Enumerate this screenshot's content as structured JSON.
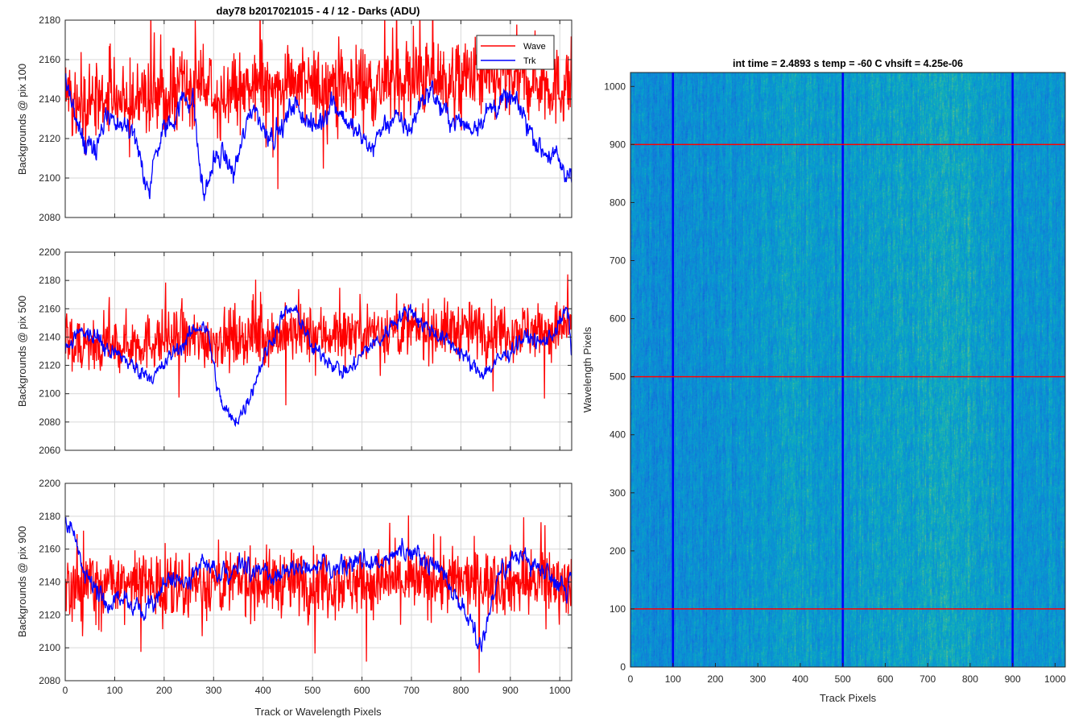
{
  "figure": {
    "title": "day78 b2017021015 - 4 / 12 - Darks (ADU)",
    "shared_xlabel": "Track or Wavelength Pixels",
    "colors": {
      "wave": "#ff0000",
      "trk": "#0000ff",
      "grid": "#d9d9d9",
      "axis": "#262626"
    }
  },
  "chart_data": [
    {
      "type": "line",
      "ylabel": "Backgrounds @ pix 100",
      "xlim": [
        0,
        1024
      ],
      "ylim": [
        2080,
        2180
      ],
      "xticks": [
        0,
        100,
        200,
        300,
        400,
        500,
        600,
        700,
        800,
        900,
        1000
      ],
      "yticks": [
        2080,
        2100,
        2120,
        2140,
        2160,
        2180
      ],
      "grid": true,
      "legend": {
        "placement": "top-right",
        "entries": [
          "Wave",
          "Trk"
        ]
      },
      "series": [
        {
          "name": "Wave",
          "color": "#ff0000",
          "x": [
            0,
            25,
            50,
            75,
            100,
            125,
            150,
            175,
            200,
            225,
            250,
            275,
            300,
            325,
            350,
            375,
            400,
            425,
            450,
            475,
            500,
            525,
            550,
            575,
            600,
            625,
            650,
            675,
            700,
            725,
            750,
            775,
            800,
            825,
            850,
            875,
            900,
            925,
            950,
            975,
            1000,
            1024
          ],
          "y": [
            2150,
            2142,
            2138,
            2140,
            2145,
            2140,
            2138,
            2142,
            2142,
            2140,
            2145,
            2148,
            2140,
            2142,
            2145,
            2143,
            2148,
            2146,
            2150,
            2148,
            2145,
            2148,
            2150,
            2146,
            2150,
            2146,
            2148,
            2152,
            2150,
            2150,
            2152,
            2148,
            2150,
            2152,
            2148,
            2150,
            2152,
            2150,
            2150,
            2148,
            2145,
            2150
          ],
          "noise": 14
        },
        {
          "name": "Trk",
          "color": "#0000ff",
          "x": [
            0,
            8,
            20,
            40,
            60,
            80,
            100,
            120,
            140,
            160,
            170,
            180,
            200,
            220,
            240,
            260,
            270,
            280,
            300,
            320,
            340,
            360,
            380,
            400,
            420,
            440,
            460,
            480,
            500,
            520,
            540,
            560,
            580,
            600,
            620,
            640,
            660,
            680,
            700,
            720,
            740,
            760,
            780,
            800,
            820,
            840,
            860,
            880,
            900,
            920,
            940,
            960,
            980,
            1000,
            1010,
            1024
          ],
          "y": [
            2150,
            2145,
            2128,
            2118,
            2112,
            2130,
            2128,
            2128,
            2123,
            2098,
            2092,
            2110,
            2125,
            2130,
            2142,
            2138,
            2110,
            2090,
            2108,
            2112,
            2102,
            2120,
            2138,
            2125,
            2122,
            2125,
            2138,
            2133,
            2125,
            2130,
            2140,
            2132,
            2125,
            2120,
            2115,
            2125,
            2130,
            2128,
            2125,
            2140,
            2145,
            2135,
            2130,
            2128,
            2125,
            2130,
            2135,
            2138,
            2140,
            2135,
            2125,
            2115,
            2112,
            2108,
            2100,
            2105
          ],
          "noise": 5
        }
      ]
    },
    {
      "type": "line",
      "ylabel": "Backgrounds @ pix 500",
      "xlim": [
        0,
        1024
      ],
      "ylim": [
        2060,
        2200
      ],
      "xticks": [
        0,
        100,
        200,
        300,
        400,
        500,
        600,
        700,
        800,
        900,
        1000
      ],
      "yticks": [
        2060,
        2080,
        2100,
        2120,
        2140,
        2160,
        2180,
        2200
      ],
      "grid": true,
      "series": [
        {
          "name": "Wave",
          "color": "#ff0000",
          "x": [
            0,
            50,
            100,
            150,
            200,
            250,
            300,
            350,
            400,
            450,
            500,
            550,
            600,
            650,
            700,
            750,
            800,
            850,
            900,
            950,
            1000,
            1024
          ],
          "y": [
            2135,
            2135,
            2135,
            2136,
            2138,
            2138,
            2138,
            2140,
            2140,
            2142,
            2142,
            2142,
            2145,
            2145,
            2145,
            2145,
            2145,
            2145,
            2145,
            2145,
            2145,
            2150
          ],
          "noise": 14
        },
        {
          "name": "Trk",
          "color": "#0000ff",
          "x": [
            0,
            20,
            40,
            60,
            80,
            100,
            120,
            140,
            160,
            180,
            200,
            220,
            240,
            260,
            280,
            290,
            300,
            310,
            320,
            340,
            360,
            380,
            400,
            420,
            440,
            460,
            480,
            500,
            520,
            540,
            560,
            580,
            600,
            620,
            640,
            660,
            680,
            700,
            720,
            740,
            760,
            780,
            800,
            820,
            840,
            860,
            880,
            900,
            920,
            940,
            960,
            980,
            1000,
            1015,
            1024
          ],
          "y": [
            2130,
            2140,
            2145,
            2140,
            2132,
            2128,
            2125,
            2118,
            2115,
            2112,
            2120,
            2130,
            2135,
            2145,
            2150,
            2140,
            2120,
            2100,
            2090,
            2080,
            2088,
            2105,
            2125,
            2140,
            2155,
            2160,
            2150,
            2130,
            2128,
            2122,
            2115,
            2118,
            2128,
            2135,
            2138,
            2150,
            2155,
            2160,
            2150,
            2145,
            2140,
            2135,
            2130,
            2120,
            2115,
            2118,
            2125,
            2130,
            2138,
            2140,
            2135,
            2140,
            2150,
            2160,
            2130
          ],
          "noise": 5
        }
      ]
    },
    {
      "type": "line",
      "ylabel": "Backgrounds @ pix 900",
      "xlabel": "Track or Wavelength Pixels",
      "xlim": [
        0,
        1024
      ],
      "ylim": [
        2080,
        2200
      ],
      "xticks": [
        0,
        100,
        200,
        300,
        400,
        500,
        600,
        700,
        800,
        900,
        1000
      ],
      "yticks": [
        2080,
        2100,
        2120,
        2140,
        2160,
        2180,
        2200
      ],
      "grid": true,
      "series": [
        {
          "name": "Wave",
          "color": "#ff0000",
          "x": [
            0,
            100,
            200,
            300,
            400,
            500,
            600,
            700,
            800,
            900,
            1000,
            1024
          ],
          "y": [
            2138,
            2138,
            2138,
            2140,
            2140,
            2140,
            2140,
            2140,
            2140,
            2140,
            2140,
            2140
          ],
          "noise": 14
        },
        {
          "name": "Trk",
          "color": "#0000ff",
          "x": [
            0,
            10,
            20,
            40,
            60,
            80,
            100,
            120,
            140,
            160,
            180,
            200,
            220,
            240,
            260,
            280,
            300,
            320,
            340,
            360,
            380,
            400,
            420,
            440,
            460,
            480,
            500,
            520,
            540,
            560,
            580,
            600,
            620,
            640,
            660,
            680,
            700,
            720,
            740,
            760,
            780,
            800,
            820,
            840,
            860,
            880,
            900,
            920,
            940,
            960,
            980,
            1000,
            1015,
            1024
          ],
          "y": [
            2175,
            2175,
            2165,
            2145,
            2135,
            2128,
            2130,
            2128,
            2125,
            2122,
            2128,
            2140,
            2142,
            2140,
            2145,
            2150,
            2148,
            2145,
            2150,
            2152,
            2145,
            2148,
            2142,
            2145,
            2150,
            2148,
            2148,
            2150,
            2145,
            2148,
            2152,
            2155,
            2152,
            2150,
            2155,
            2160,
            2158,
            2155,
            2152,
            2150,
            2135,
            2125,
            2118,
            2100,
            2125,
            2145,
            2150,
            2160,
            2150,
            2150,
            2145,
            2140,
            2135,
            2145
          ],
          "noise": 5
        }
      ]
    },
    {
      "type": "heatmap",
      "title": "int time = 2.4893 s    temp = -60 C    vhsift = 4.25e-06",
      "xlabel": "Track Pixels",
      "ylabel": "Wavelength Pixels",
      "xlim": [
        0,
        1024
      ],
      "ylim": [
        0,
        1024
      ],
      "xticks": [
        0,
        100,
        200,
        300,
        400,
        500,
        600,
        700,
        800,
        900,
        1000
      ],
      "yticks": [
        0,
        100,
        200,
        300,
        400,
        500,
        600,
        700,
        800,
        900,
        1000
      ],
      "colormap": "parula",
      "column_profile": {
        "x": [
          0,
          100,
          200,
          300,
          380,
          450,
          500,
          600,
          700,
          760,
          820,
          900,
          1000,
          1024
        ],
        "level": [
          0.38,
          0.38,
          0.4,
          0.45,
          0.5,
          0.46,
          0.45,
          0.5,
          0.54,
          0.57,
          0.5,
          0.45,
          0.42,
          0.4
        ]
      },
      "marker_lines": {
        "vertical": {
          "x": [
            100,
            500,
            900
          ],
          "color": "#0000ff"
        },
        "horizontal": {
          "y": [
            100,
            500,
            900
          ],
          "color": "#ff0000"
        }
      }
    }
  ]
}
